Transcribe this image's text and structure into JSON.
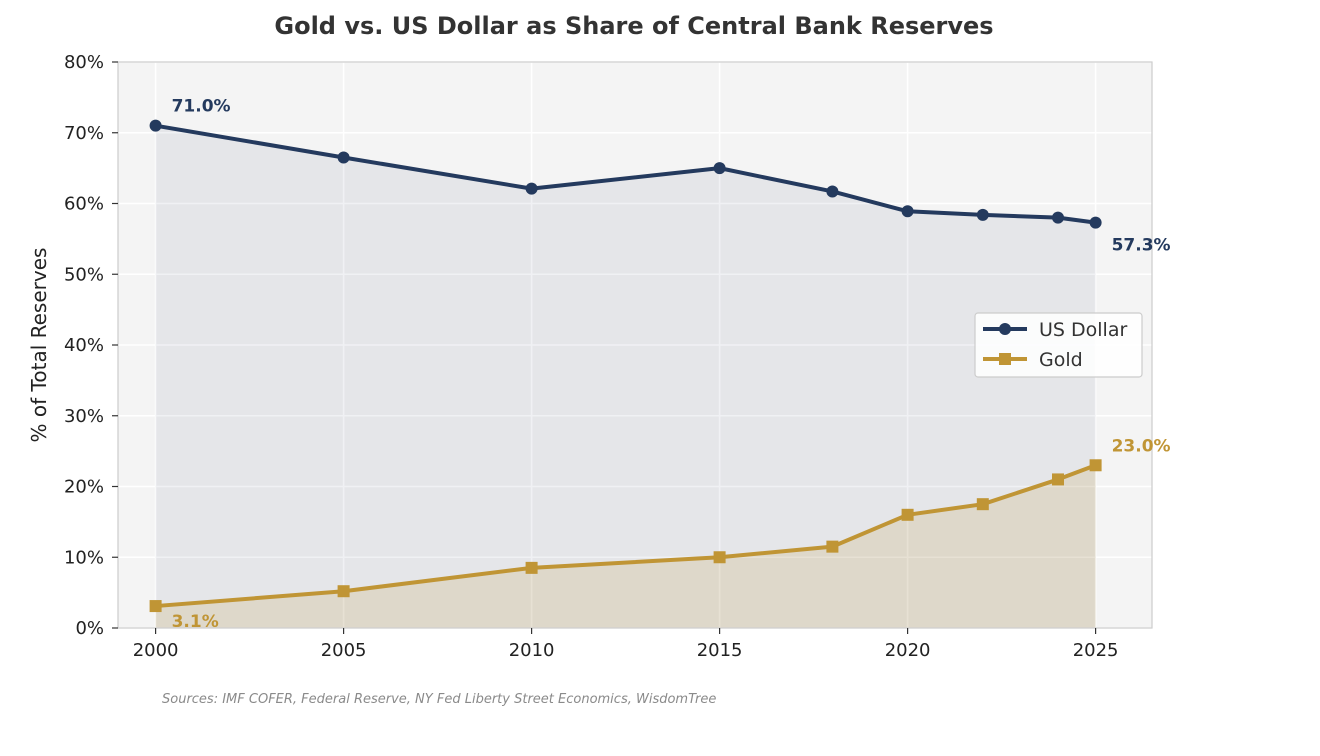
{
  "chart_data": {
    "type": "line",
    "title": "Gold vs. US Dollar as Share of Central Bank Reserves",
    "xlabel": "",
    "ylabel": "% of Total Reserves",
    "xlim": [
      1999,
      2026.5
    ],
    "ylim": [
      0,
      80
    ],
    "x_ticks": [
      2000,
      2005,
      2010,
      2015,
      2020,
      2025
    ],
    "y_ticks": [
      0,
      10,
      20,
      30,
      40,
      50,
      60,
      70,
      80
    ],
    "y_tick_labels": [
      "0%",
      "10%",
      "20%",
      "30%",
      "40%",
      "50%",
      "60%",
      "70%",
      "80%"
    ],
    "grid": true,
    "legend_position": "center-right",
    "series": [
      {
        "name": "US Dollar",
        "color": "#243a5e",
        "marker": "circle",
        "fill": true,
        "x": [
          2000,
          2005,
          2010,
          2015,
          2018,
          2020,
          2022,
          2024,
          2025
        ],
        "values": [
          71.0,
          66.5,
          62.1,
          65.0,
          61.7,
          58.9,
          58.4,
          58.0,
          57.3
        ]
      },
      {
        "name": "Gold",
        "color": "#c09535",
        "marker": "square",
        "fill": true,
        "x": [
          2000,
          2005,
          2010,
          2015,
          2018,
          2020,
          2022,
          2024,
          2025
        ],
        "values": [
          3.1,
          5.2,
          8.5,
          10.0,
          11.5,
          16.0,
          17.5,
          21.0,
          23.0
        ]
      }
    ],
    "annotations": [
      {
        "text": "71.0%",
        "series": "US Dollar",
        "x": 2000,
        "color": "#243a5e"
      },
      {
        "text": "57.3%",
        "series": "US Dollar",
        "x": 2025,
        "color": "#243a5e"
      },
      {
        "text": "3.1%",
        "series": "Gold",
        "x": 2000,
        "color": "#c09535"
      },
      {
        "text": "23.0%",
        "series": "Gold",
        "x": 2025,
        "color": "#c09535"
      }
    ],
    "source_note": "Sources: IMF COFER, Federal Reserve, NY Fed Liberty Street Economics, WisdomTree"
  }
}
